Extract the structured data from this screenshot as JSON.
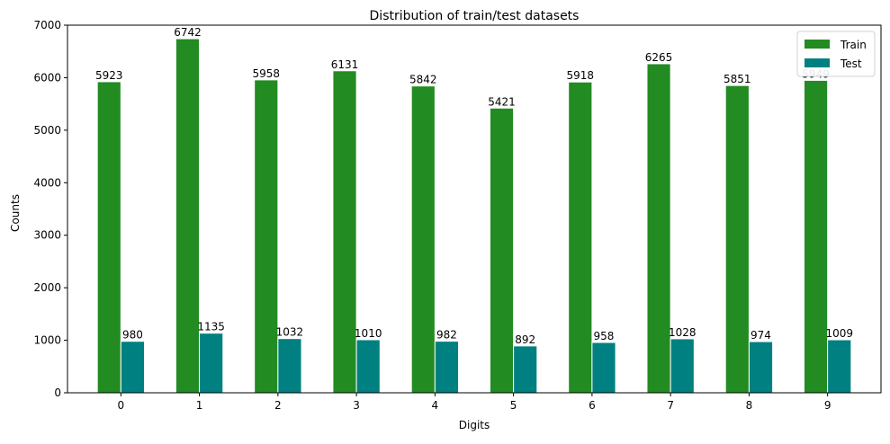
{
  "chart_data": {
    "type": "bar",
    "title": "Distribution of train/test datasets",
    "xlabel": "Digits",
    "ylabel": "Counts",
    "categories": [
      "0",
      "1",
      "2",
      "3",
      "4",
      "5",
      "6",
      "7",
      "8",
      "9"
    ],
    "series": [
      {
        "name": "Train",
        "color": "#228B22",
        "values": [
          5923,
          6742,
          5958,
          6131,
          5842,
          5421,
          5918,
          6265,
          5851,
          5949
        ]
      },
      {
        "name": "Test",
        "color": "#008080",
        "values": [
          980,
          1135,
          1032,
          1010,
          982,
          892,
          958,
          1028,
          974,
          1009
        ]
      }
    ],
    "ylim": [
      0,
      7000
    ],
    "yticks": [
      0,
      1000,
      2000,
      3000,
      4000,
      5000,
      6000,
      7000
    ],
    "legend_position": "top-right",
    "grid": false
  }
}
